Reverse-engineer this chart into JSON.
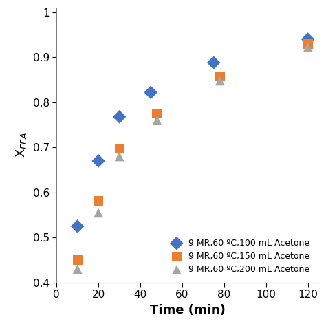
{
  "series": [
    {
      "label": "9 MR,60 ºC,100 mL Acetone",
      "x": [
        10,
        20,
        30,
        45,
        75,
        120
      ],
      "y": [
        0.525,
        0.67,
        0.768,
        0.822,
        0.888,
        0.94
      ],
      "color": "#4472C4",
      "marker": "D",
      "markersize": 10
    },
    {
      "label": "9 MR,60 ºC,150 mL Acetone",
      "x": [
        10,
        20,
        30,
        48,
        78,
        120
      ],
      "y": [
        0.45,
        0.582,
        0.698,
        0.775,
        0.858,
        0.93
      ],
      "color": "#ED7D31",
      "marker": "s",
      "markersize": 10
    },
    {
      "label": "9 MR,60 ºC,200 mL Acetone",
      "x": [
        10,
        20,
        30,
        48,
        78,
        120
      ],
      "y": [
        0.43,
        0.555,
        0.68,
        0.76,
        0.848,
        0.922
      ],
      "color": "#A5A5A5",
      "marker": "^",
      "markersize": 10
    }
  ],
  "xlabel": "Time (min)",
  "ylabel": "X$_{FFA}$",
  "xlim": [
    0,
    125
  ],
  "ylim": [
    0.4,
    1.01
  ],
  "xticks": [
    0,
    20,
    40,
    60,
    80,
    100,
    120
  ],
  "yticks": [
    0.4,
    0.5,
    0.6,
    0.7,
    0.8,
    0.9,
    1.0
  ],
  "ytick_labels": [
    "0.4",
    "0.5",
    "0.6",
    "0.7",
    "0.8",
    "0.9",
    "1"
  ],
  "legend_loc": "lower right",
  "spine_color": "#808080",
  "background_color": "#ffffff"
}
